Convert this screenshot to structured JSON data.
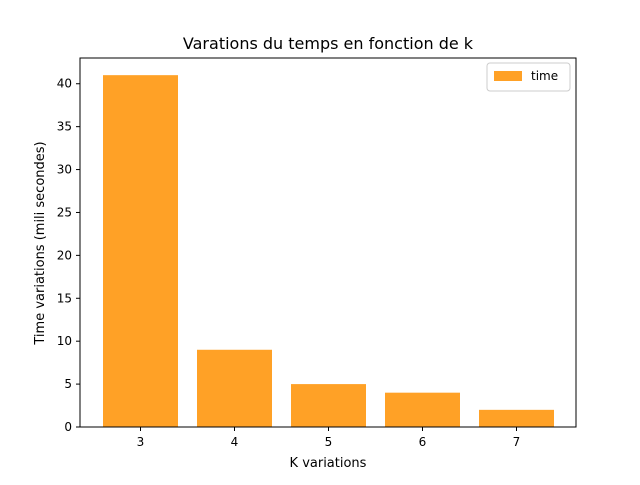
{
  "chart_data": {
    "type": "bar",
    "title": "Varations  du temps en fonction de k",
    "xlabel": "K variations",
    "ylabel": "Time variations (mili secondes)",
    "categories": [
      "3",
      "4",
      "5",
      "6",
      "7"
    ],
    "series": [
      {
        "name": "time",
        "values": [
          41,
          9,
          5,
          4,
          2
        ],
        "color": "#ffa126"
      }
    ],
    "ylim": [
      0,
      43
    ],
    "yticks": [
      0,
      5,
      10,
      15,
      20,
      25,
      30,
      35,
      40
    ],
    "grid": false,
    "legend_position": "top-right"
  }
}
